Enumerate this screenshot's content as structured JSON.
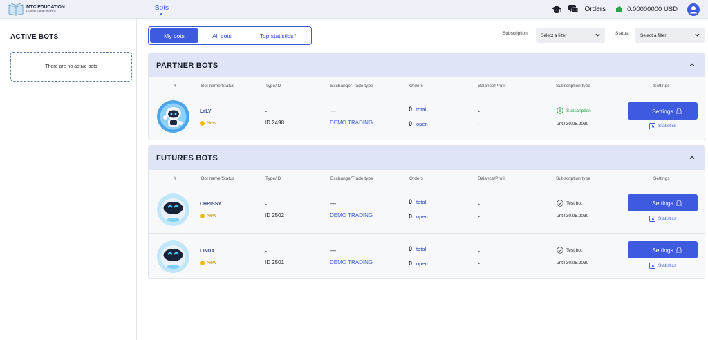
{
  "header": {
    "logo_name": "MTC EDUCATION",
    "logo_tagline": "LEARN | EARN | INSPIRE",
    "nav_bots": "Bots",
    "orders": "Orders",
    "balance": "0.00000000 USD"
  },
  "sidebar": {
    "title": "ACTIVE BOTS",
    "empty_text": "There are no active bots"
  },
  "tabs": {
    "items": [
      "My bots",
      "All bots",
      "Top statistics"
    ],
    "top_stats_superscript": "?",
    "active": "My bots"
  },
  "filters": {
    "subscription_label": "Subscription:",
    "subscription_value": "Select a filter",
    "status_label": "Status:",
    "status_value": "Select a filter"
  },
  "columns": [
    "#",
    "Bot name/Status",
    "Type/ID",
    "Exchange/Trade type",
    "Orders",
    "Balance/Profit",
    "Subscription type",
    "Settings"
  ],
  "sections": [
    {
      "title": "PARTNER BOTS",
      "bots": [
        {
          "name": "LYLY",
          "status": "New",
          "type": "-",
          "id": "ID 2498",
          "exchange": "—",
          "trade_type": "DEMO TRADING",
          "orders_total": "0",
          "orders_total_label": "total",
          "orders_open": "0",
          "orders_open_label": "open",
          "balance": "-",
          "profit": "-",
          "subscription": "Subscription",
          "until": "until 30.05.2030",
          "settings_label": "Settings",
          "statistics_label": "Statistics"
        }
      ]
    },
    {
      "title": "FUTURES BOTS",
      "bots": [
        {
          "name": "CHRISSY",
          "status": "New",
          "type": "-",
          "id": "ID 2502",
          "exchange": "—",
          "trade_type": "DEMO TRADING",
          "orders_total": "0",
          "orders_total_label": "total",
          "orders_open": "0",
          "orders_open_label": "open",
          "balance": "-",
          "profit": "-",
          "subscription": "Test bot",
          "until": "until 30.05.2030",
          "settings_label": "Settings",
          "statistics_label": "Statistics"
        },
        {
          "name": "LINDA",
          "status": "New",
          "type": "-",
          "id": "ID 2501",
          "exchange": "—",
          "trade_type": "DEMO TRADING",
          "orders_total": "0",
          "orders_total_label": "total",
          "orders_open": "0",
          "orders_open_label": "open",
          "balance": "-",
          "profit": "-",
          "subscription": "Test bot",
          "until": "until 30.05.2030",
          "settings_label": "Settings",
          "statistics_label": "Statistics"
        }
      ]
    }
  ],
  "colors": {
    "accent": "#3e5be0",
    "section_header": "#dfe4f7",
    "status_new": "#f2b705",
    "subscription_green": "#2aa24a"
  },
  "icons": [
    "logo-book-icon",
    "graduation-cap-icon",
    "chat-icon",
    "wallet-icon",
    "user-avatar-icon",
    "chevron-down-icon",
    "chevron-up-icon",
    "dollar-circle-icon",
    "check-circle-icon",
    "bell-icon",
    "chart-icon"
  ]
}
